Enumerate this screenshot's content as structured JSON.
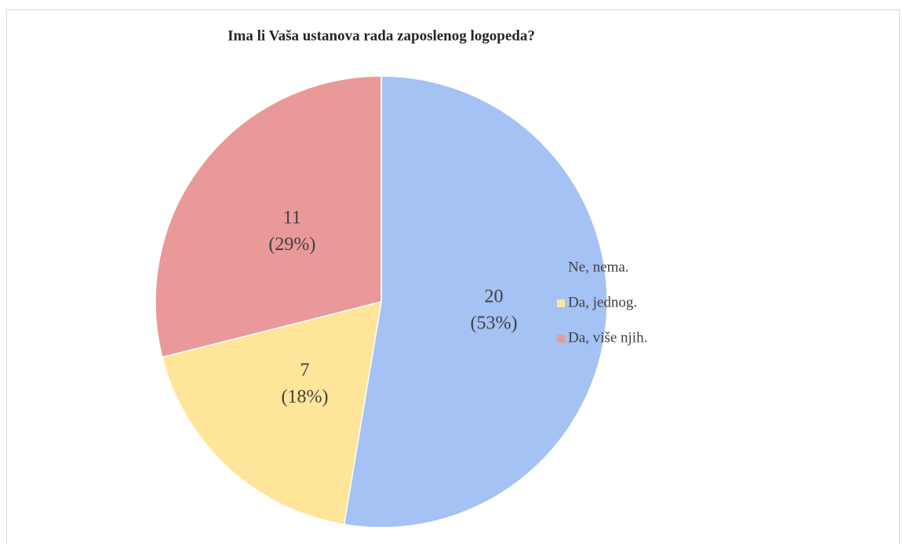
{
  "chart_data": {
    "type": "pie",
    "title": "Ima li Vaša ustanova rada zaposlenog logopeda?",
    "categories": [
      "Ne, nema.",
      "Da, jednog.",
      "Da, više njih."
    ],
    "values": [
      20,
      7,
      11
    ],
    "percent_labels": [
      "(53%)",
      "(18%)",
      "(29%)"
    ],
    "colors": [
      "#a4c2f4",
      "#ffe599",
      "#ea9999"
    ],
    "legend": "right"
  }
}
